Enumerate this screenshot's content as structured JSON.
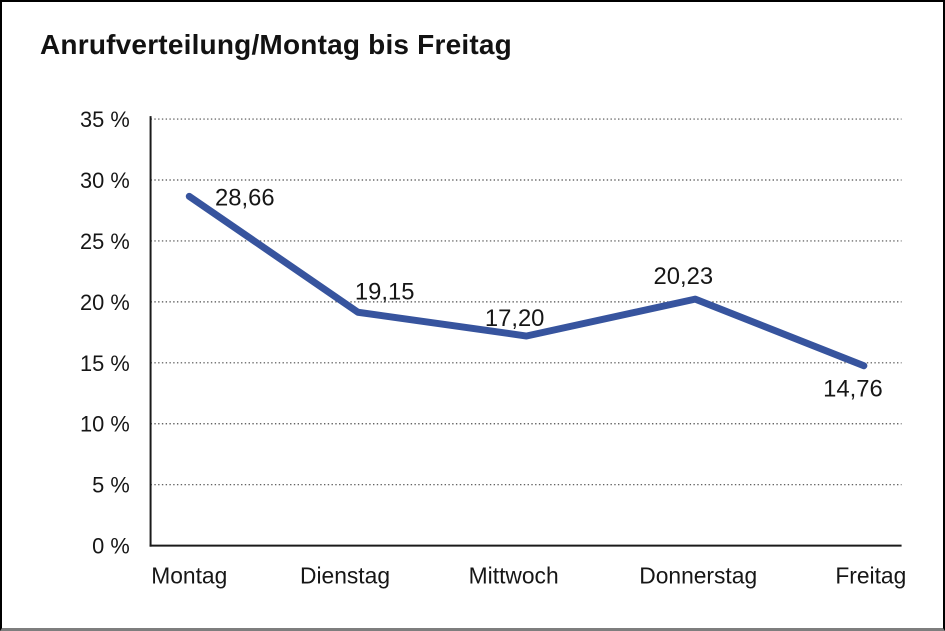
{
  "page": {
    "title": "Anrufverteilung/Montag bis Freitag"
  },
  "chart_data": {
    "type": "line",
    "title": "Anrufverteilung/Montag bis Freitag",
    "categories": [
      "Montag",
      "Dienstag",
      "Mittwoch",
      "Donnerstag",
      "Freitag"
    ],
    "values": [
      28.66,
      19.15,
      17.2,
      20.23,
      14.76
    ],
    "value_labels": [
      "28,66",
      "19,15",
      "17,20",
      "20,23",
      "14,76"
    ],
    "xlabel": "",
    "ylabel": "",
    "ylim": [
      0,
      35
    ],
    "ytick_step": 5,
    "ytick_labels": [
      "0 %",
      "5 %",
      "10 %",
      "15 %",
      "20 %",
      "25 %",
      "30 %",
      "35 %"
    ],
    "grid": "horizontal-dotted",
    "legend": "none",
    "colors": {
      "line": "#37549e",
      "axis": "#1a1a1a",
      "gridline": "#4d4d4d",
      "text": "#161616"
    }
  }
}
